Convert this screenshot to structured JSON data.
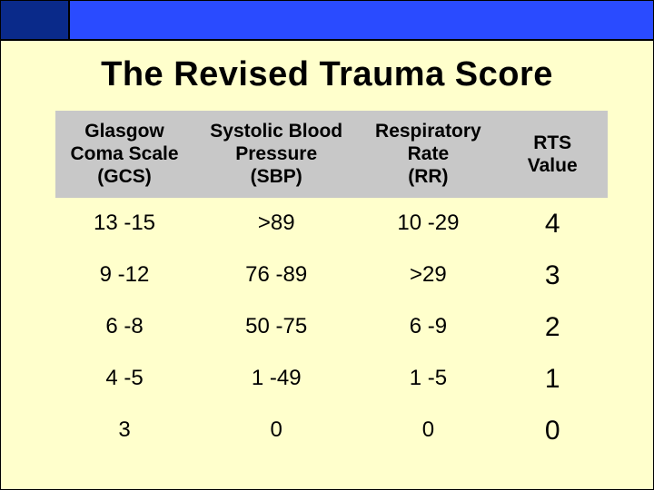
{
  "title": "The Revised Trauma Score",
  "colors": {
    "background": "#ffffcc",
    "topbar_left": "#0a2a8a",
    "topbar_right": "#2a4bff",
    "header_row_bg": "#c8c8c8",
    "text": "#000000",
    "border": "#000000"
  },
  "typography": {
    "title_fontsize_pt": 28,
    "header_fontsize_pt": 16,
    "cell_fontsize_pt": 18,
    "value_fontsize_pt": 22,
    "font_family": "Arial"
  },
  "table": {
    "type": "table",
    "columns": [
      {
        "key": "gcs",
        "label": "Glasgow\nComa Scale\n(GCS)",
        "width_pct": 25,
        "align": "center"
      },
      {
        "key": "sbp",
        "label": "Systolic Blood\nPressure\n(SBP)",
        "width_pct": 30,
        "align": "center"
      },
      {
        "key": "rr",
        "label": "Respiratory\nRate\n(RR)",
        "width_pct": 25,
        "align": "center"
      },
      {
        "key": "rts",
        "label": "RTS\nValue",
        "width_pct": 20,
        "align": "center"
      }
    ],
    "rows": [
      {
        "gcs": "13 -15",
        "sbp": ">89",
        "rr": "10 -29",
        "rts": "4"
      },
      {
        "gcs": "9 -12",
        "sbp": "76 -89",
        "rr": ">29",
        "rts": "3"
      },
      {
        "gcs": "6 -8",
        "sbp": "50 -75",
        "rr": "6 -9",
        "rts": "2"
      },
      {
        "gcs": "4 -5",
        "sbp": "1 -49",
        "rr": "1 -5",
        "rts": "1"
      },
      {
        "gcs": "3",
        "sbp": "0",
        "rr": "0",
        "rts": "0"
      }
    ]
  }
}
